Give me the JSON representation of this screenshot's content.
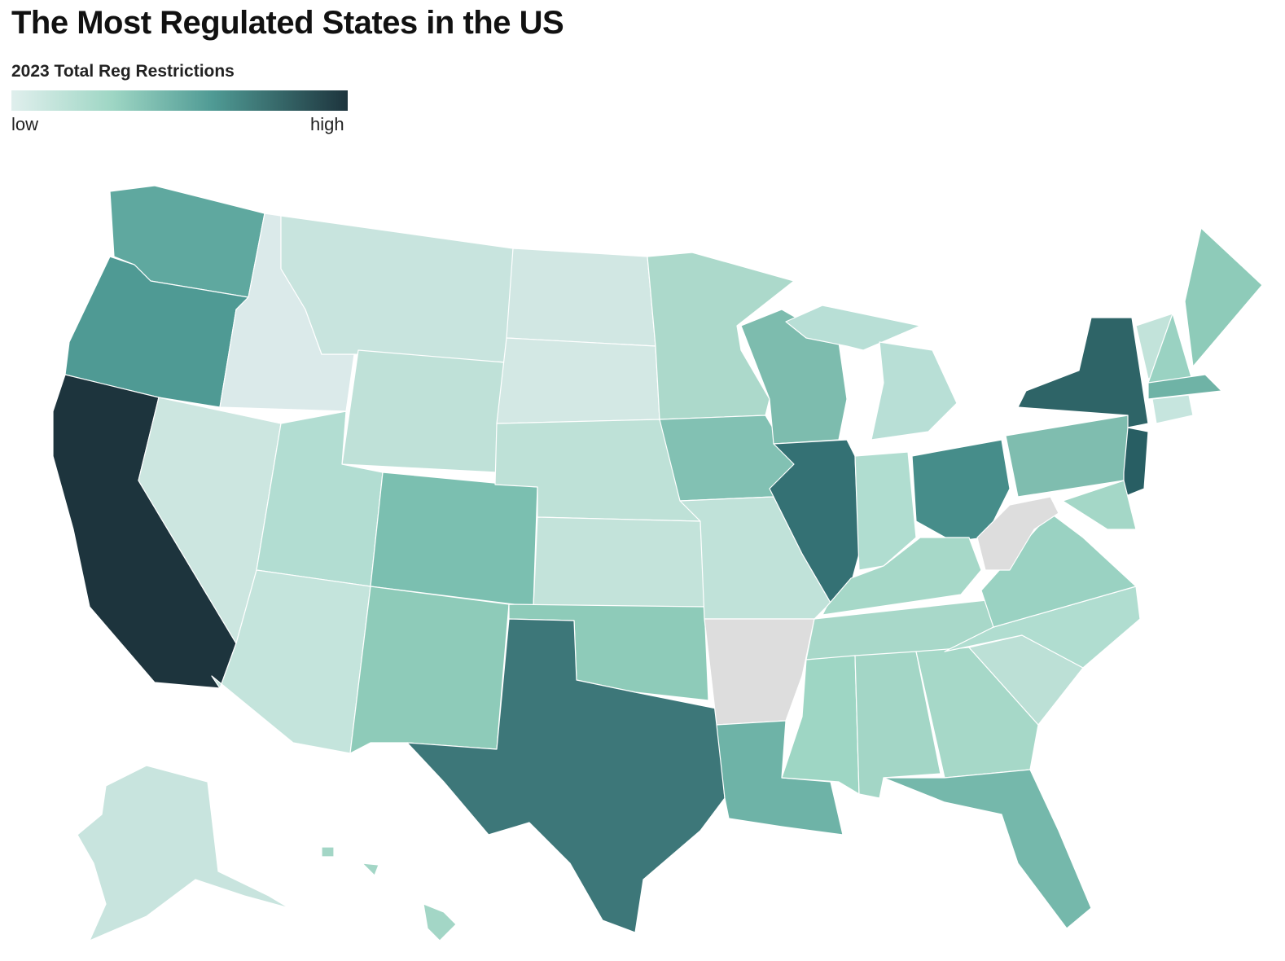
{
  "title": "The Most Regulated States in the US",
  "legend": {
    "title": "2023 Total Reg Restrictions",
    "low": "low",
    "high": "high"
  }
}
